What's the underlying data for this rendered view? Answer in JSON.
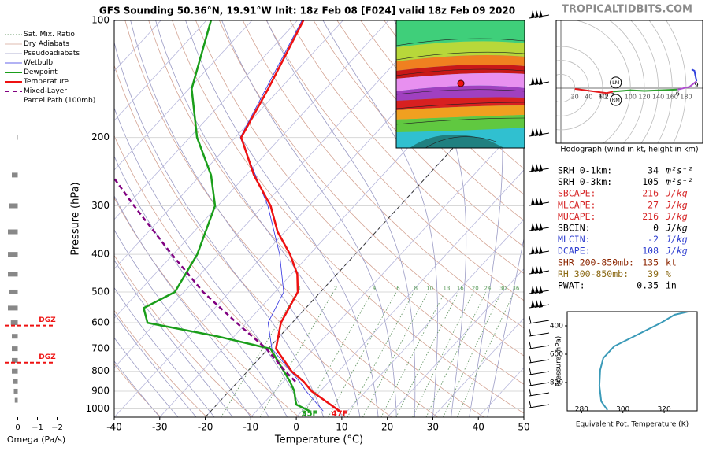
{
  "title": "GFS Sounding 50.36°N, 19.91°W Init: 18z Feb 08 [F024] valid 18z Feb 09 2020",
  "site": "TROPICALTIDBITS.COM",
  "chart_data": [
    {
      "type": "skewt",
      "xlabel": "Temperature (°C)",
      "ylabel": "Pressure (hPa)",
      "xlim": [
        -40,
        50
      ],
      "ylim": [
        1050,
        100
      ],
      "log_y": true,
      "grid": true,
      "xticks": [
        -40,
        -30,
        -20,
        -10,
        0,
        10,
        20,
        30,
        40,
        50
      ],
      "yticks": [
        100,
        200,
        300,
        400,
        500,
        600,
        700,
        800,
        900,
        1000
      ],
      "dashed_isotherms": [
        -20
      ],
      "mixing_ratio_labels": [
        1,
        2,
        4,
        6,
        8,
        10,
        13,
        16,
        20,
        24,
        30,
        36
      ],
      "background_lines": [
        {
          "name": "Sat. Mix. Ratio",
          "color": "#6a9a6a",
          "style": "dotted"
        },
        {
          "name": "Dry Adiabats",
          "color": "#d4a494",
          "style": "thin"
        },
        {
          "name": "Pseudoadiabats",
          "color": "#9a9ac4",
          "style": "thin"
        }
      ],
      "series": [
        {
          "name": "Wetbulb",
          "color": "#3030e0",
          "style": "thin",
          "pressure": [
            1013,
            900,
            850,
            700,
            600,
            500,
            400,
            300,
            200,
            100
          ],
          "values": [
            4.7,
            -3.1,
            -6.5,
            -19.2,
            -25.3,
            -28.1,
            -36.6,
            -49,
            -68.9,
            -79
          ]
        },
        {
          "name": "Dewpoint",
          "color": "#1a9e1a",
          "style": "thick",
          "surface_label": "35F",
          "pressure": [
            1013,
            975,
            950,
            900,
            850,
            800,
            700,
            650,
            600,
            550,
            500,
            400,
            300,
            250,
            200,
            150,
            100
          ],
          "values": [
            1.7,
            -2.5,
            -3.6,
            -5.7,
            -8.6,
            -12,
            -19.5,
            -33.8,
            -51.8,
            -55.6,
            -52,
            -54.7,
            -60.6,
            -67.7,
            -78.4,
            -89.4,
            -99
          ]
        },
        {
          "name": "Temperature",
          "color": "#ee1111",
          "style": "thick",
          "surface_label": "47F",
          "pressure": [
            1013,
            900,
            850,
            800,
            700,
            600,
            500,
            450,
            400,
            350,
            300,
            250,
            200,
            150,
            100
          ],
          "values": [
            8.3,
            -1.9,
            -5.6,
            -10.3,
            -18.3,
            -22.5,
            -25,
            -28.7,
            -34.3,
            -41.6,
            -48.4,
            -58.3,
            -68.7,
            -72.6,
            -78.7
          ]
        },
        {
          "name": "Mixed-Layer\nParcel Path (100mb)",
          "color": "#800080",
          "style": "dashed",
          "pressure": [
            850,
            800,
            700,
            600,
            500,
            400,
            300,
            255
          ],
          "values": [
            -7.4,
            -11.7,
            -20.4,
            -32.2,
            -45.8,
            -60.3,
            -78.4,
            -88.3
          ]
        }
      ]
    },
    {
      "type": "omega",
      "xlabel": "Omega (Pa/s)",
      "xlim": [
        0.9,
        -2.3
      ],
      "ylim": [
        1050,
        100
      ],
      "color": "#888888",
      "xticks": [
        0,
        {
          "value": -1,
          "label": "−1"
        },
        {
          "value": -2,
          "label": "−2"
        }
      ],
      "pressure": [
        200,
        250,
        300,
        350,
        400,
        450,
        500,
        550,
        600,
        650,
        700,
        750,
        800,
        850,
        900,
        950
      ],
      "values": [
        0.05,
        0.3,
        0.45,
        0.5,
        0.5,
        0.5,
        0.45,
        0.5,
        0.35,
        0.3,
        0.3,
        0.3,
        0.3,
        0.25,
        0.2,
        0.15
      ],
      "dgz": [
        {
          "pressure": 610,
          "label": "DGZ"
        },
        {
          "pressure": 760,
          "label": "DGZ"
        }
      ],
      "dgz_color": "#ee1111"
    },
    {
      "type": "hodograph",
      "title": "Hodograph (wind in kt, height in km)",
      "ring_labels": [
        20,
        40,
        60,
        100,
        120,
        140,
        160,
        180
      ],
      "segments": [
        {
          "color": "#e31a1c",
          "u": [
            20,
            57,
            66,
            75
          ],
          "v": [
            -1,
            -6,
            -7,
            -5
          ]
        },
        {
          "color": "#2ca02c",
          "u": [
            75,
            100,
            120,
            168
          ],
          "v": [
            -5,
            -3,
            -4,
            -2
          ]
        },
        {
          "color": "#b04fd0",
          "u": [
            168,
            185,
            195
          ],
          "v": [
            -2,
            2,
            10
          ]
        },
        {
          "color": "#3344dd",
          "u": [
            195,
            192,
            188
          ],
          "v": [
            10,
            25,
            27
          ]
        }
      ],
      "height_labels": [
        {
          "label": "1",
          "u": 57,
          "v": -6
        },
        {
          "label": "2",
          "u": 66,
          "v": -7
        },
        {
          "label": "3",
          "u": 75,
          "v": -5
        },
        {
          "label": "6",
          "u": 168,
          "v": -2
        },
        {
          "label": "9",
          "u": 195,
          "v": 10
        }
      ],
      "storm_motion": [
        {
          "label": "LM",
          "u": 79,
          "v": 8
        },
        {
          "label": "RM",
          "u": 79,
          "v": -17
        }
      ]
    },
    {
      "type": "line",
      "xlabel": "Equivalent Pot. Temperature (K)",
      "ylabel": "Pressure (hPa)",
      "xlim": [
        273,
        336
      ],
      "ylim": [
        1000,
        300
      ],
      "xticks": [
        280,
        300,
        320
      ],
      "yticks": [
        400,
        600,
        800
      ],
      "color": "#3a9ab8",
      "pressure": [
        994,
        933,
        822,
        711,
        628,
        544,
        461,
        378,
        322,
        300
      ],
      "values": [
        292.5,
        289.5,
        288.6,
        289,
        290.5,
        295.8,
        307.2,
        318.6,
        325,
        331.6
      ]
    }
  ],
  "indices": [
    {
      "label": "SRH 0-1km:",
      "value": 34,
      "unit": "m²s⁻²",
      "color": "#000000"
    },
    {
      "label": "SRH 0-3km:",
      "value": 105,
      "unit": "m²s⁻²",
      "color": "#000000"
    },
    {
      "label": "SBCAPE:",
      "value": 216,
      "unit": "J/kg",
      "color": "#d62728"
    },
    {
      "label": "MLCAPE:",
      "value": 27,
      "unit": "J/kg",
      "color": "#d62728"
    },
    {
      "label": "MUCAPE:",
      "value": 216,
      "unit": "J/kg",
      "color": "#d62728"
    },
    {
      "label": "SBCIN:",
      "value": 0,
      "unit": "J/kg",
      "color": "#000000"
    },
    {
      "label": "MLCIN:",
      "value": -2,
      "unit": "J/kg",
      "color": "#3040d0"
    },
    {
      "label": "DCAPE:",
      "value": 108,
      "unit": "J/kg",
      "color": "#3040d0"
    },
    {
      "label": "SHR 200-850mb:",
      "value": 135,
      "unit": "kt",
      "color": "#8b2500"
    },
    {
      "label": "RH 300-850mb:",
      "value": 39,
      "unit": "%",
      "color": "#8b6914"
    },
    {
      "label": "PWAT:",
      "value": 0.35,
      "unit": "in",
      "color": "#000000"
    }
  ]
}
